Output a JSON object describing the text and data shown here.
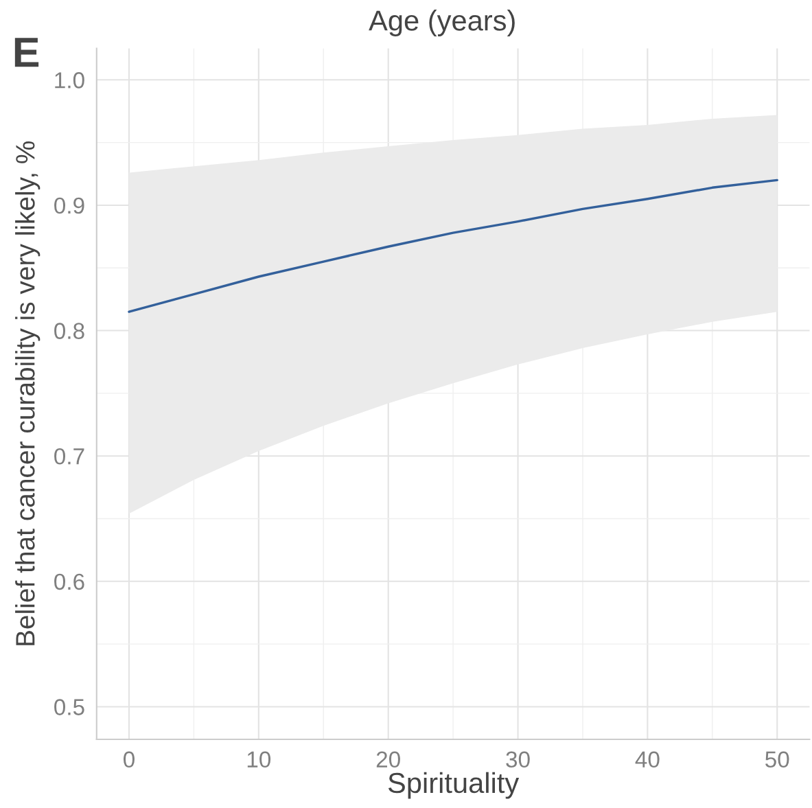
{
  "chart_data": {
    "type": "line",
    "xlabel": "Spirituality",
    "ylabel": "Belief that cancer curability is very likely, %",
    "annotations": [
      "E",
      "Age (years)"
    ],
    "x": [
      0,
      5,
      10,
      15,
      20,
      25,
      30,
      35,
      40,
      45,
      50
    ],
    "series": [
      {
        "color": "#33609b",
        "values": [
          0.815,
          0.829,
          0.843,
          0.855,
          0.867,
          0.878,
          0.887,
          0.897,
          0.905,
          0.914,
          0.92
        ],
        "lower": [
          0.654,
          0.681,
          0.704,
          0.724,
          0.742,
          0.758,
          0.773,
          0.786,
          0.797,
          0.807,
          0.815
        ],
        "upper": [
          0.926,
          0.931,
          0.936,
          0.942,
          0.947,
          0.952,
          0.956,
          0.961,
          0.964,
          0.969,
          0.972
        ]
      }
    ],
    "xlim": [
      -2.5,
      52.5
    ],
    "ylim": [
      0.474,
      1.025
    ],
    "xticks": [
      0,
      10,
      20,
      30,
      40,
      50
    ],
    "yticks": [
      {
        "value": 0.5,
        "label": "0.5"
      },
      {
        "value": 0.6,
        "label": "0.6"
      },
      {
        "value": 0.7,
        "label": "0.7"
      },
      {
        "value": 0.8,
        "label": "0.8"
      },
      {
        "value": 0.9,
        "label": "0.9"
      },
      {
        "value": 1.0,
        "label": "1.0"
      }
    ],
    "grid": true,
    "legend": false
  }
}
